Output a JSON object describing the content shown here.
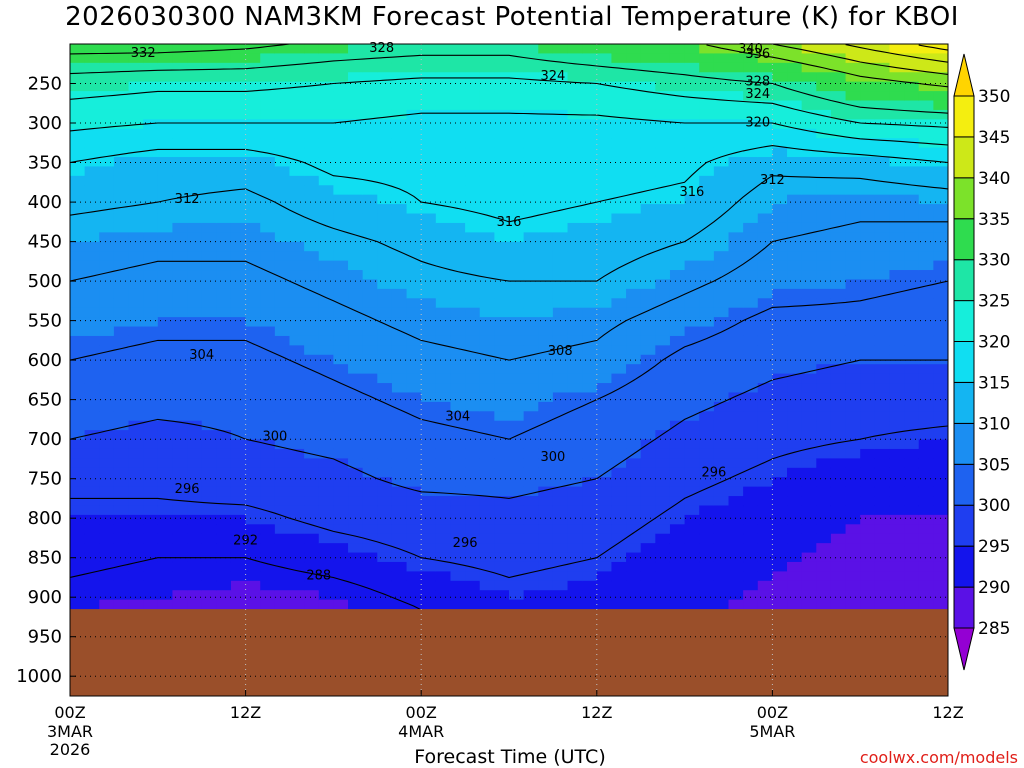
{
  "chart_data": {
    "type": "heatmap",
    "title": "2026030300 NAM3KM Forecast Potential Temperature (K) for KBOI",
    "xlabel": "Forecast Time (UTC)",
    "ylabel": "",
    "credit": "coolwx.com/models",
    "x_range_hours": [
      0,
      60
    ],
    "y_range_hpa": [
      200,
      1025
    ],
    "y_ticks": [
      250,
      300,
      350,
      400,
      450,
      500,
      550,
      600,
      650,
      700,
      750,
      800,
      850,
      900,
      950,
      1000
    ],
    "x_ticks": [
      {
        "hour": 0,
        "label": "00Z",
        "sub1": "3MAR",
        "sub2": "2026"
      },
      {
        "hour": 12,
        "label": "12Z",
        "sub1": "",
        "sub2": ""
      },
      {
        "hour": 24,
        "label": "00Z",
        "sub1": "4MAR",
        "sub2": ""
      },
      {
        "hour": 36,
        "label": "12Z",
        "sub1": "",
        "sub2": ""
      },
      {
        "hour": 48,
        "label": "00Z",
        "sub1": "5MAR",
        "sub2": ""
      },
      {
        "hour": 60,
        "label": "12Z",
        "sub1": "",
        "sub2": ""
      }
    ],
    "grid": "dotted",
    "ground_pressure_hpa": 915,
    "ground_color": "#9a4f2a",
    "colorbar": {
      "placement": "right",
      "levels": [
        285,
        290,
        295,
        300,
        305,
        310,
        315,
        320,
        325,
        330,
        335,
        340,
        345,
        350
      ],
      "colors": [
        "#9400d3",
        "#5a11e6",
        "#1414ec",
        "#1f3ef0",
        "#1e62f0",
        "#1b8ef2",
        "#14b5f2",
        "#10def2",
        "#16eedb",
        "#1ee6a6",
        "#2fdc4f",
        "#7ce22a",
        "#cde818",
        "#f4ee10",
        "#ffd400"
      ]
    },
    "contour_labels": [
      {
        "value": "332",
        "hour": 5.0,
        "hpa": 212
      },
      {
        "value": "328",
        "hour": 21.3,
        "hpa": 206
      },
      {
        "value": "340",
        "hour": 46.5,
        "hpa": 207
      },
      {
        "value": "336",
        "hour": 47.0,
        "hpa": 213
      },
      {
        "value": "324",
        "hour": 33.0,
        "hpa": 241
      },
      {
        "value": "328",
        "hour": 47.0,
        "hpa": 248
      },
      {
        "value": "324",
        "hour": 47.0,
        "hpa": 264
      },
      {
        "value": "320",
        "hour": 47.0,
        "hpa": 300
      },
      {
        "value": "312",
        "hour": 8.0,
        "hpa": 397
      },
      {
        "value": "312",
        "hour": 48.0,
        "hpa": 373
      },
      {
        "value": "316",
        "hour": 42.5,
        "hpa": 388
      },
      {
        "value": "316",
        "hour": 30.0,
        "hpa": 426
      },
      {
        "value": "304",
        "hour": 9.0,
        "hpa": 594
      },
      {
        "value": "308",
        "hour": 33.5,
        "hpa": 589
      },
      {
        "value": "304",
        "hour": 26.5,
        "hpa": 672
      },
      {
        "value": "300",
        "hour": 14.0,
        "hpa": 697
      },
      {
        "value": "300",
        "hour": 33.0,
        "hpa": 723
      },
      {
        "value": "296",
        "hour": 8.0,
        "hpa": 764
      },
      {
        "value": "296",
        "hour": 44.0,
        "hpa": 743
      },
      {
        "value": "296",
        "hour": 27.0,
        "hpa": 832
      },
      {
        "value": "292",
        "hour": 12.0,
        "hpa": 829
      },
      {
        "value": "288",
        "hour": 17.0,
        "hpa": 873
      }
    ],
    "contour_levels": [
      288,
      292,
      296,
      300,
      304,
      308,
      312,
      316,
      320,
      324,
      328,
      332,
      336,
      340,
      344,
      348
    ],
    "theta_profiles": [
      {
        "hour": 0,
        "pressure": [
          200,
          250,
          300,
          350,
          400,
          450,
          500,
          550,
          600,
          650,
          700,
          750,
          800,
          850,
          900,
          915
        ],
        "theta": [
          334,
          326,
          321,
          316,
          313,
          310,
          308,
          306,
          304,
          302,
          300,
          297,
          295,
          293,
          291,
          290
        ]
      },
      {
        "hour": 6,
        "pressure": [
          200,
          250,
          300,
          350,
          400,
          450,
          500,
          550,
          600,
          650,
          700,
          750,
          800,
          850,
          900,
          915
        ],
        "theta": [
          334,
          325,
          320,
          314,
          312,
          309,
          307,
          305,
          303,
          301,
          299,
          297,
          295,
          292,
          290,
          289
        ]
      },
      {
        "hour": 12,
        "pressure": [
          200,
          250,
          300,
          350,
          400,
          450,
          500,
          550,
          600,
          650,
          700,
          750,
          800,
          850,
          900,
          915
        ],
        "theta": [
          333,
          325,
          320,
          314,
          311,
          309,
          307,
          305,
          303,
          301,
          300,
          298,
          295,
          292,
          289,
          288
        ]
      },
      {
        "hour": 18,
        "pressure": [
          200,
          250,
          300,
          350,
          400,
          450,
          500,
          550,
          600,
          650,
          700,
          750,
          800,
          850,
          900,
          915
        ],
        "theta": [
          331,
          324,
          320,
          317,
          314,
          311,
          309,
          307,
          305,
          303,
          301,
          299,
          297,
          294,
          290,
          289
        ]
      },
      {
        "hour": 24,
        "pressure": [
          200,
          250,
          300,
          350,
          400,
          450,
          500,
          550,
          600,
          650,
          700,
          750,
          800,
          850,
          900,
          915
        ],
        "theta": [
          330,
          323,
          319,
          317,
          316,
          313,
          311,
          309,
          307,
          305,
          303,
          301,
          298,
          296,
          293,
          292
        ]
      },
      {
        "hour": 30,
        "pressure": [
          200,
          250,
          300,
          350,
          400,
          450,
          500,
          550,
          600,
          650,
          700,
          750,
          800,
          850,
          900,
          915
        ],
        "theta": [
          330,
          323,
          319,
          318,
          317,
          315,
          312,
          310,
          308,
          306,
          304,
          301,
          299,
          297,
          295,
          294
        ]
      },
      {
        "hour": 36,
        "pressure": [
          200,
          250,
          300,
          350,
          400,
          450,
          500,
          550,
          600,
          650,
          700,
          750,
          800,
          850,
          900,
          915
        ],
        "theta": [
          333,
          324,
          319,
          318,
          316,
          314,
          312,
          309,
          307,
          304,
          302,
          300,
          298,
          296,
          294,
          293
        ]
      },
      {
        "hour": 42,
        "pressure": [
          200,
          250,
          300,
          350,
          400,
          450,
          500,
          550,
          600,
          650,
          700,
          750,
          800,
          850,
          900,
          915
        ],
        "theta": [
          335,
          326,
          320,
          317,
          315,
          312,
          309,
          306,
          303,
          301,
          299,
          297,
          295,
          293,
          292,
          291
        ]
      },
      {
        "hour": 48,
        "pressure": [
          200,
          250,
          300,
          350,
          400,
          450,
          500,
          550,
          600,
          650,
          700,
          750,
          800,
          850,
          900,
          915
        ],
        "theta": [
          340,
          328,
          320,
          313,
          310,
          308,
          306,
          303,
          301,
          299,
          297,
          295,
          293,
          291,
          289,
          288
        ]
      },
      {
        "hour": 54,
        "pressure": [
          200,
          250,
          300,
          350,
          400,
          450,
          500,
          550,
          600,
          650,
          700,
          750,
          800,
          850,
          900,
          915
        ],
        "theta": [
          345,
          334,
          324,
          314,
          309,
          307,
          305,
          303,
          300,
          298,
          296,
          293,
          290,
          288,
          287,
          287
        ]
      },
      {
        "hour": 60,
        "pressure": [
          200,
          250,
          300,
          350,
          400,
          450,
          500,
          550,
          600,
          650,
          700,
          750,
          800,
          850,
          900,
          915
        ],
        "theta": [
          350,
          337,
          325,
          316,
          310,
          306,
          304,
          302,
          300,
          298,
          295,
          292,
          290,
          288,
          287,
          287
        ]
      }
    ]
  }
}
